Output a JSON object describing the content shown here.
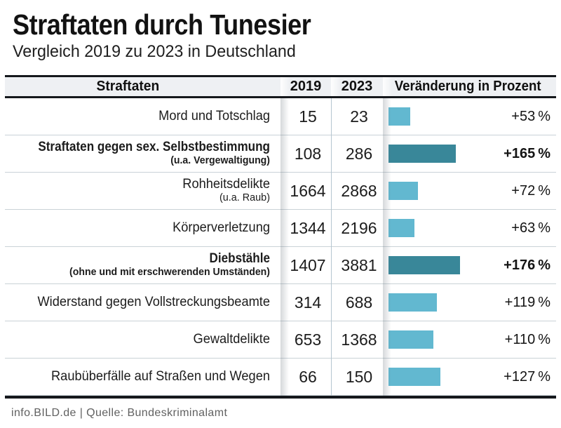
{
  "header": {
    "title": "Straftaten durch Tunesier",
    "subtitle": "Vergleich 2019 zu 2023 in Deutschland"
  },
  "table": {
    "columns": {
      "crime": "Straftaten",
      "y2019": "2019",
      "y2023": "2023",
      "change": "Veränderung in Prozent"
    },
    "rows": [
      {
        "label": "Mord und Totschlag",
        "sub": "",
        "v2019": "15",
        "v2023": "23",
        "pct": 53,
        "pct_label": "+53 %",
        "bold": false
      },
      {
        "label": "Straftaten gegen sex. Selbstbestimmung",
        "sub": "(u.a. Vergewaltigung)",
        "v2019": "108",
        "v2023": "286",
        "pct": 165,
        "pct_label": "+165 %",
        "bold": true
      },
      {
        "label": "Rohheitsdelikte",
        "sub": "(u.a. Raub)",
        "v2019": "1664",
        "v2023": "2868",
        "pct": 72,
        "pct_label": "+72 %",
        "bold": false
      },
      {
        "label": "Körperverletzung",
        "sub": "",
        "v2019": "1344",
        "v2023": "2196",
        "pct": 63,
        "pct_label": "+63 %",
        "bold": false
      },
      {
        "label": "Diebstähle",
        "sub": "(ohne und mit erschwerenden Umständen)",
        "v2019": "1407",
        "v2023": "3881",
        "pct": 176,
        "pct_label": "+176 %",
        "bold": true
      },
      {
        "label": "Widerstand gegen Vollstreckungsbeamte",
        "sub": "",
        "v2019": "314",
        "v2023": "688",
        "pct": 119,
        "pct_label": "+119 %",
        "bold": false
      },
      {
        "label": "Gewaltdelikte",
        "sub": "",
        "v2019": "653",
        "v2023": "1368",
        "pct": 110,
        "pct_label": "+110 %",
        "bold": false
      },
      {
        "label": "Raubüberfälle auf Straßen und Wegen",
        "sub": "",
        "v2019": "66",
        "v2023": "150",
        "pct": 127,
        "pct_label": "+127 %",
        "bold": false
      }
    ]
  },
  "footer": {
    "source": "info.BILD.de | Quelle: Bundeskriminalamt"
  },
  "colors": {
    "bar_normal": "#62b8d0",
    "bar_highlight": "#398799",
    "header_bg": "#eef0f3",
    "table_border": "#15181c",
    "row_line": "#c9d2d7",
    "column_line": "#b5c6d0",
    "footer_text": "#616161"
  },
  "chart_data": {
    "type": "bar",
    "title": "Straftaten durch Tunesier",
    "subtitle": "Vergleich 2019 zu 2023 in Deutschland",
    "orientation": "horizontal",
    "categories": [
      "Mord und Totschlag",
      "Straftaten gegen sex. Selbstbestimmung (u.a. Vergewaltigung)",
      "Rohheitsdelikte (u.a. Raub)",
      "Körperverletzung",
      "Diebstähle (ohne und mit erschwerenden Umständen)",
      "Widerstand gegen Vollstreckungsbeamte",
      "Gewaltdelikte",
      "Raubüberfälle auf Straßen und Wegen"
    ],
    "series": [
      {
        "name": "2019",
        "values": [
          15,
          108,
          1664,
          1344,
          1407,
          314,
          653,
          66
        ]
      },
      {
        "name": "2023",
        "values": [
          23,
          286,
          2868,
          2196,
          3881,
          688,
          1368,
          150
        ]
      },
      {
        "name": "Veränderung in Prozent",
        "values": [
          53,
          165,
          72,
          63,
          176,
          119,
          110,
          127
        ]
      }
    ],
    "plotted_series": "Veränderung in Prozent",
    "highlighted_categories_index": [
      1,
      4
    ],
    "xlabel": "Veränderung in Prozent",
    "ylabel": "Straftaten",
    "xlim": [
      0,
      180
    ],
    "grid": false,
    "legend": false,
    "source": "info.BILD.de | Quelle: Bundeskriminalamt"
  }
}
